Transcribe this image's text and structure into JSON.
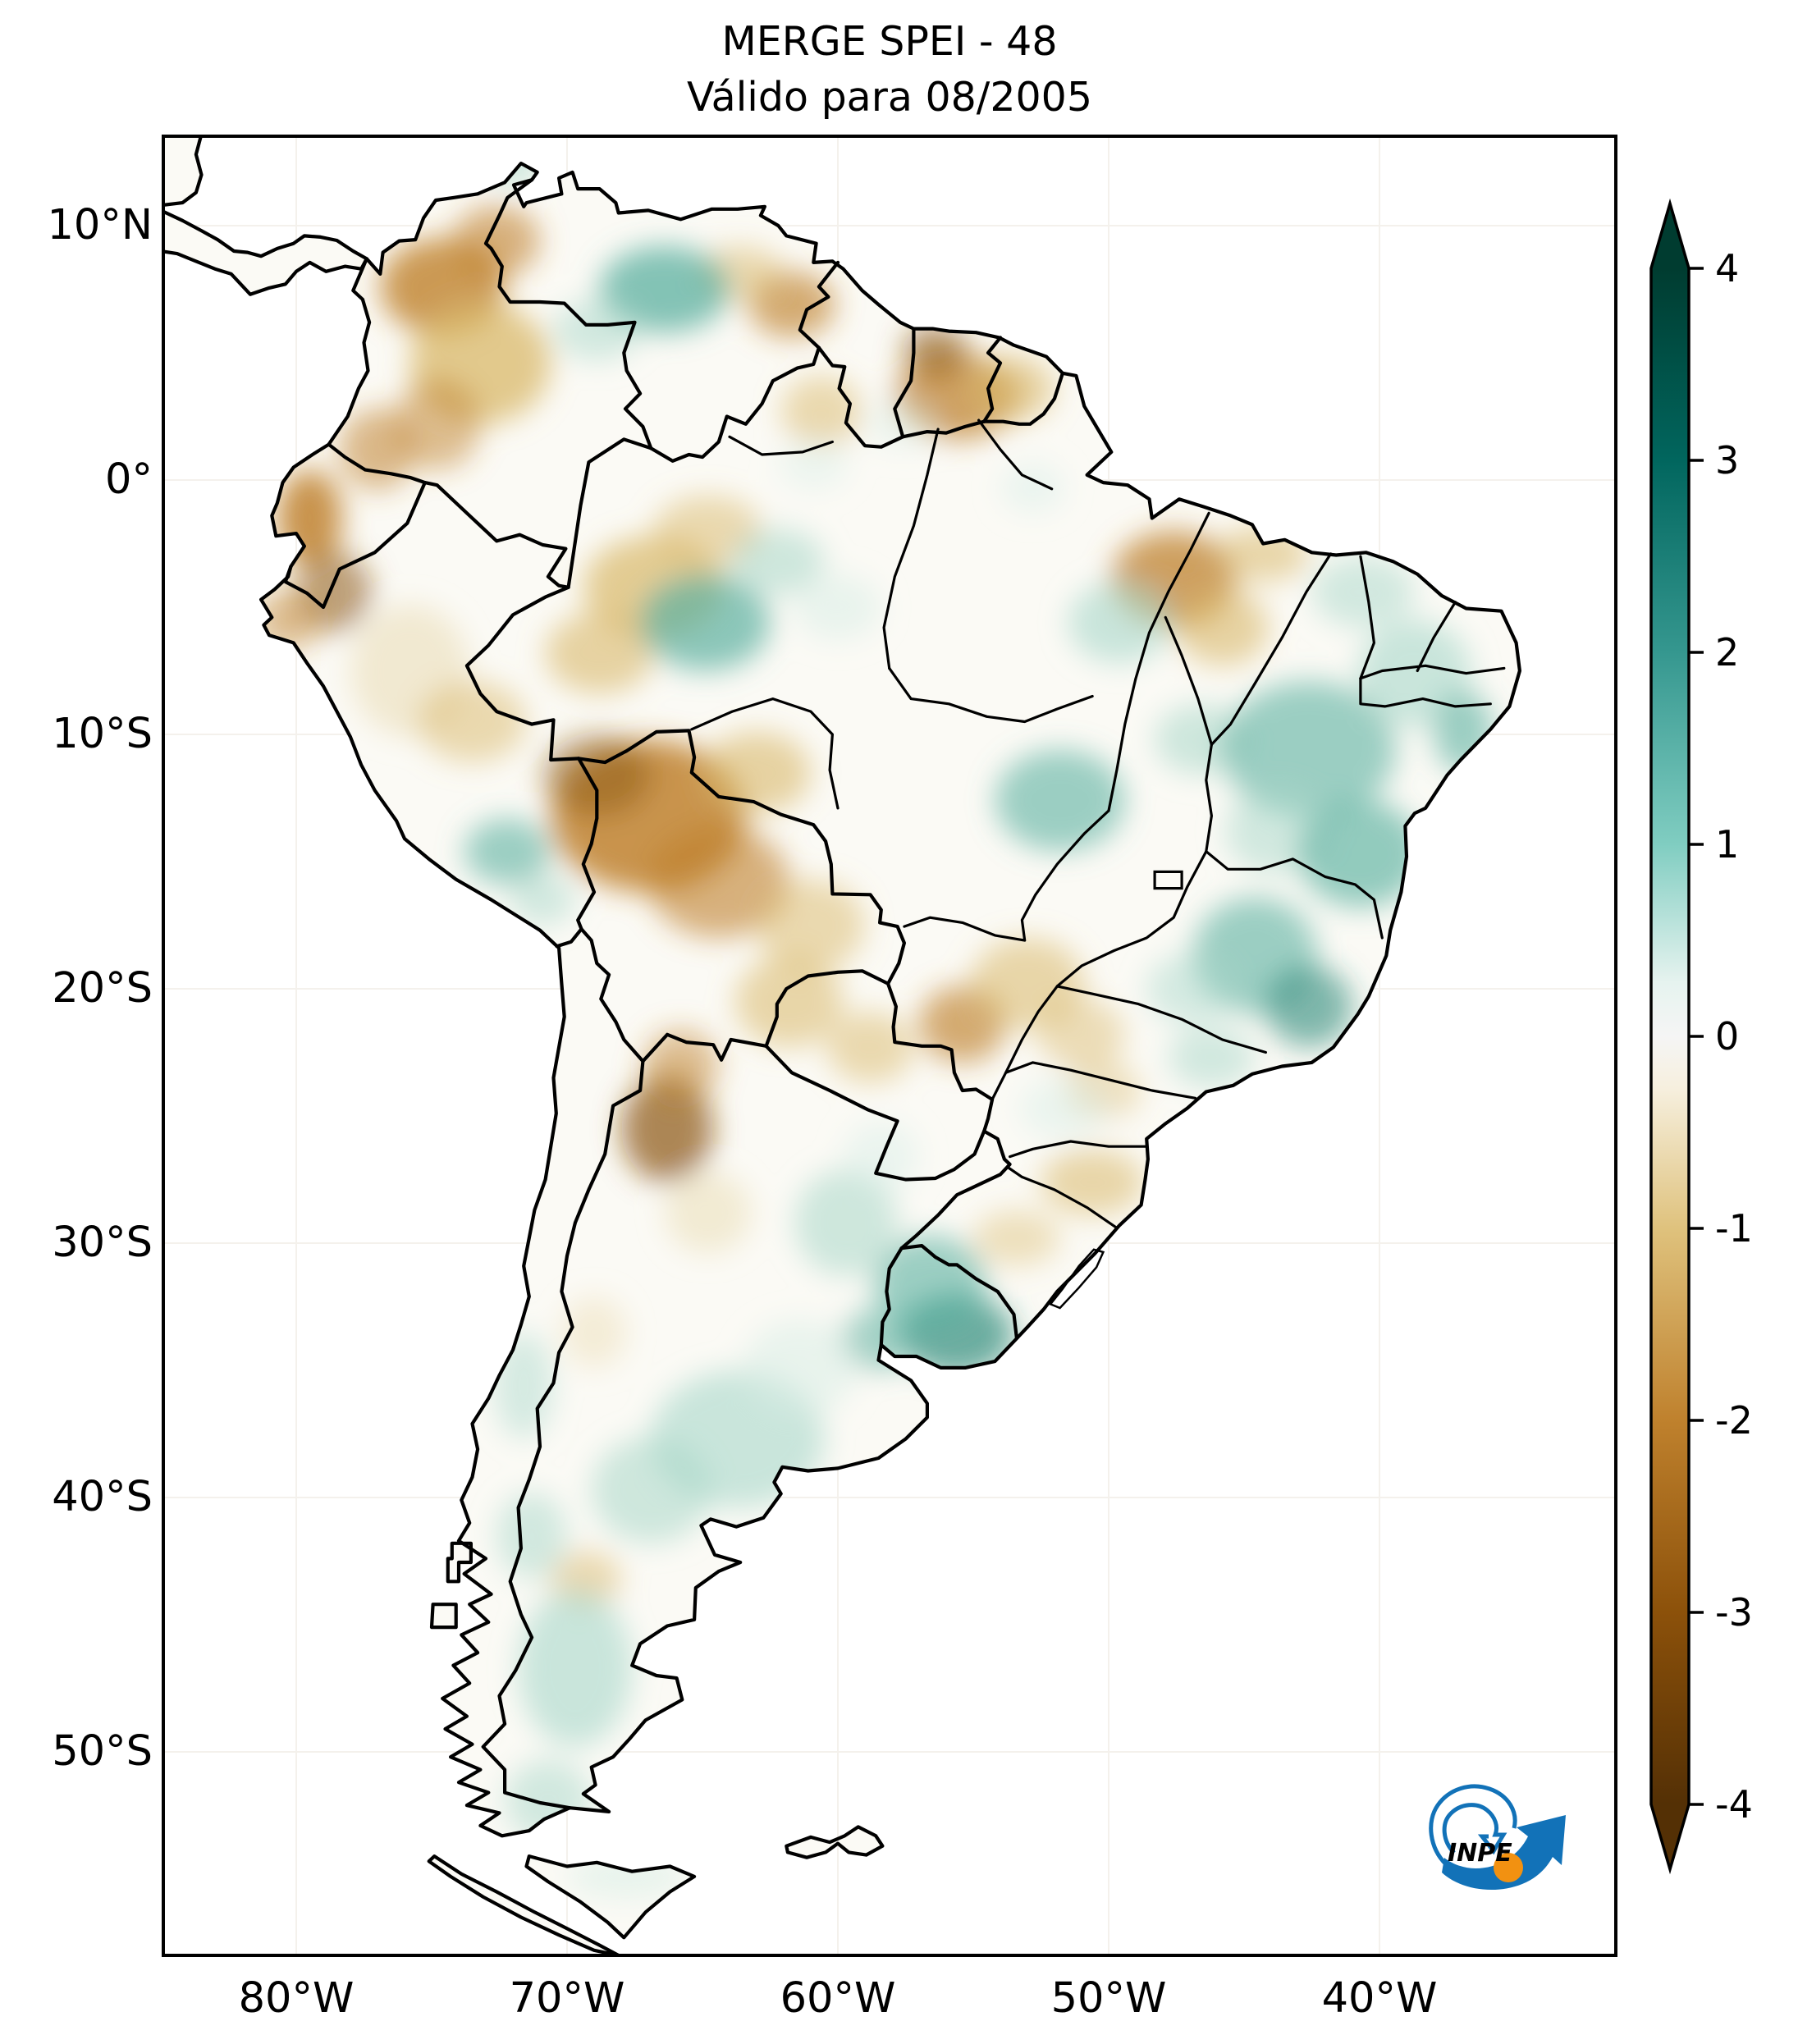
{
  "title": {
    "line1": "MERGE   SPEI - 48",
    "line2": "Válido para 08/2005"
  },
  "axes": {
    "latitude_labels": [
      "10°N",
      "0°",
      "10°S",
      "20°S",
      "30°S",
      "40°S",
      "50°S"
    ],
    "longitude_labels": [
      "80°W",
      "70°W",
      "60°W",
      "50°W",
      "40°W"
    ]
  },
  "colorbar": {
    "tick_labels": [
      "4",
      "3",
      "2",
      "1",
      "0",
      "-1",
      "-2",
      "-3",
      "-4"
    ],
    "vmin": -4,
    "vmax": 4,
    "colormap": "brown-white-teal (BrBG)",
    "extended_arrow_ends": true,
    "colors": {
      "teal_max": "#003c30",
      "teal_3": "#01665e",
      "teal_2": "#35978f",
      "teal_1": "#80cdc1",
      "neutral_0": "#f5f5f5",
      "brown_m1": "#dfc27d",
      "brown_m2": "#bf812d",
      "brown_m3": "#8c510a",
      "brown_min": "#543005"
    }
  },
  "logo": {
    "text": "INPE",
    "blue": "#1272b8",
    "orange": "#f29111"
  },
  "map_data": {
    "type": "heatmap",
    "region": "South America with national and Brazilian state borders",
    "variable": "SPEI-48 drought index (MERGE)",
    "valid_for": "08/2005",
    "legend_range": [
      -4,
      4
    ],
    "regional_values_approx": [
      {
        "region": "Northern / central Colombia",
        "spei": -1.5
      },
      {
        "region": "Ecuador and far northern Peru",
        "spei": -1.7
      },
      {
        "region": "Central Venezuela (Llanos)",
        "spei": 1.2
      },
      {
        "region": "SE Venezuela / Guyana highlands",
        "spei": -1.0
      },
      {
        "region": "Suriname interior",
        "spei": -1.8
      },
      {
        "region": "Western Amazonas (Brazil)",
        "spei": -1.0
      },
      {
        "region": "Central Amazon (Rio Negro)",
        "spei": 1.0
      },
      {
        "region": "SW Amazon / N Bolivia / Rondônia",
        "spei": -1.9
      },
      {
        "region": "Peruvian Andes (Cusco area)",
        "spei": 0.8
      },
      {
        "region": "E Pará / Maranhão",
        "spei": -1.3
      },
      {
        "region": "NE Brazil (Piauí, Bahia, Ceará)",
        "spei": 1.2
      },
      {
        "region": "Minas Gerais / Espírito Santo / Rio",
        "spei": 1.4
      },
      {
        "region": "São Paulo / Paraná",
        "spei": 0.3
      },
      {
        "region": "Santa Catarina coast",
        "spei": -0.8
      },
      {
        "region": "Mato Grosso do Sul / Paraguay border",
        "spei": -1.0
      },
      {
        "region": "NW Argentina (Salta)",
        "spei": -1.9
      },
      {
        "region": "Uruguay and S Rio Grande do Sul",
        "spei": 1.6
      },
      {
        "region": "Central Argentina (Pampas)",
        "spei": 0.8
      },
      {
        "region": "Patagonia",
        "spei": 0.6
      }
    ]
  }
}
